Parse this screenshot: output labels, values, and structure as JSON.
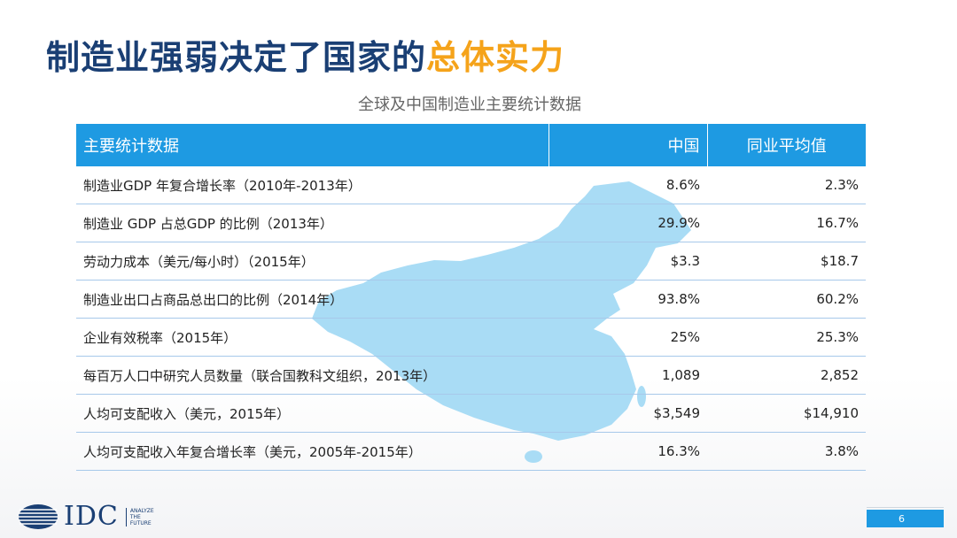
{
  "title": {
    "part1": "制造业强弱决定了国家的",
    "part2": "总体实力"
  },
  "subtitle": "全球及中国制造业主要统计数据",
  "table": {
    "headers": [
      "主要统计数据",
      "中国",
      "同业平均值"
    ],
    "rows": [
      [
        "制造业GDP 年复合增长率（2010年-2013年）",
        "8.6%",
        "2.3%"
      ],
      [
        "制造业 GDP 占总GDP 的比例（2013年）",
        "29.9%",
        "16.7%"
      ],
      [
        "劳动力成本（美元/每小时）（2015年）",
        "$3.3",
        "$18.7"
      ],
      [
        "制造业出口占商品总出口的比例（2014年）",
        "93.8%",
        "60.2%"
      ],
      [
        "企业有效税率（2015年）",
        "25%",
        "25.3%"
      ],
      [
        "每百万人口中研究人员数量（联合国教科文组织，2013年）",
        "1,089",
        "2,852"
      ],
      [
        "人均可支配收入（美元，2015年）",
        "$3,549",
        "$14,910"
      ],
      [
        "人均可支配收入年复合增长率（美元，2005年-2015年）",
        "16.3%",
        "3.8%"
      ]
    ]
  },
  "footer": {
    "logo": "IDC",
    "tagline": [
      "ANALYZE",
      "THE",
      "FUTURE"
    ],
    "page_number": "6"
  },
  "colors": {
    "title_blue": "#1a3f74",
    "title_orange": "#f5a31a",
    "header_blue": "#1e9ae2",
    "map_fill": "#a9dcf5"
  },
  "icons": [
    "china-map-watermark",
    "idc-globe-logo-icon"
  ]
}
